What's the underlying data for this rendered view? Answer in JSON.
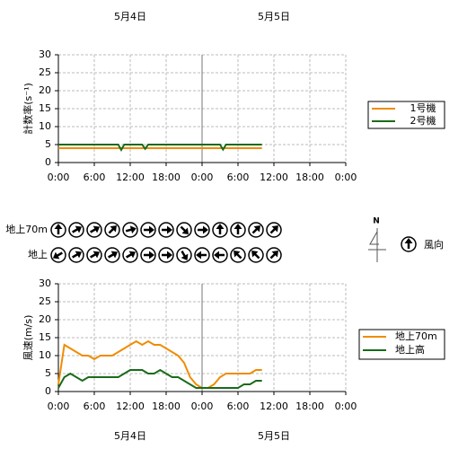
{
  "header": {
    "dates": [
      "5月4日",
      "5月5日"
    ]
  },
  "chart_data": [
    {
      "type": "line",
      "ylabel": "計数率(s⁻¹)",
      "x": [
        0,
        1,
        2,
        3,
        4,
        5,
        6,
        7,
        8,
        9,
        10,
        10.5,
        11,
        12,
        13,
        14,
        14.5,
        15,
        16,
        17,
        18,
        19,
        20,
        21,
        22,
        23,
        24,
        25,
        26,
        27,
        27.5,
        28,
        29,
        30,
        31,
        32,
        33,
        34
      ],
      "series": [
        {
          "name": "1号機",
          "color": "#f08c00",
          "values": [
            4,
            4,
            4,
            4,
            4,
            4,
            4,
            4,
            4,
            4,
            4,
            4,
            4,
            4,
            4,
            4,
            4,
            4,
            4,
            4,
            4,
            4,
            4,
            4,
            4,
            4,
            4,
            4,
            4,
            4,
            4,
            4,
            4,
            4,
            4,
            4,
            4,
            4
          ]
        },
        {
          "name": "2号機",
          "color": "#1a6b1a",
          "values": [
            5,
            5,
            5,
            5,
            5,
            5,
            5,
            5,
            5,
            5,
            5,
            3.5,
            5,
            5,
            5,
            5,
            3.8,
            5,
            5,
            5,
            5,
            5,
            5,
            5,
            5,
            5,
            5,
            5,
            5,
            5,
            3.6,
            5,
            5,
            5,
            5,
            5,
            5,
            5
          ]
        }
      ],
      "xlim": [
        0,
        48
      ],
      "xticks": [
        {
          "value": 0,
          "label": "0:00"
        },
        {
          "value": 6,
          "label": "6:00"
        },
        {
          "value": 12,
          "label": "12:00"
        },
        {
          "value": 18,
          "label": "18:00"
        },
        {
          "value": 24,
          "label": "0:00"
        },
        {
          "value": 30,
          "label": "6:00"
        },
        {
          "value": 36,
          "label": "12:00"
        },
        {
          "value": 42,
          "label": "18:00"
        },
        {
          "value": 48,
          "label": "0:00"
        }
      ],
      "ylim": [
        0,
        30
      ],
      "yticks": [
        0,
        5,
        10,
        15,
        20,
        25,
        30
      ],
      "grid": true
    },
    {
      "type": "line",
      "ylabel": "風速(m/s)",
      "x": [
        0,
        1,
        2,
        3,
        4,
        5,
        6,
        7,
        8,
        9,
        10,
        11,
        12,
        13,
        14,
        15,
        16,
        17,
        18,
        19,
        20,
        21,
        22,
        23,
        24,
        25,
        26,
        27,
        28,
        29,
        30,
        31,
        32,
        33,
        34
      ],
      "series": [
        {
          "name": "地上70m",
          "color": "#f08c00",
          "values": [
            2,
            13,
            12,
            11,
            10,
            10,
            9,
            10,
            10,
            10,
            11,
            12,
            13,
            14,
            13,
            14,
            13,
            13,
            12,
            11,
            10,
            8,
            4,
            2,
            1,
            1,
            2,
            4,
            5,
            5,
            5,
            5,
            5,
            6,
            6
          ]
        },
        {
          "name": "地上高",
          "color": "#1a6b1a",
          "values": [
            1,
            4,
            5,
            4,
            3,
            4,
            4,
            4,
            4,
            4,
            4,
            5,
            6,
            6,
            6,
            5,
            5,
            6,
            5,
            4,
            4,
            3,
            2,
            1,
            1,
            1,
            1,
            1,
            1,
            1,
            1,
            2,
            2,
            3,
            3
          ]
        }
      ],
      "xlim": [
        0,
        48
      ],
      "xticks": [
        {
          "value": 0,
          "label": "0:00"
        },
        {
          "value": 6,
          "label": "6:00"
        },
        {
          "value": 12,
          "label": "12:00"
        },
        {
          "value": 18,
          "label": "18:00"
        },
        {
          "value": 24,
          "label": "0:00"
        },
        {
          "value": 30,
          "label": "6:00"
        },
        {
          "value": 36,
          "label": "12:00"
        },
        {
          "value": 42,
          "label": "18:00"
        },
        {
          "value": 48,
          "label": "0:00"
        }
      ],
      "ylim": [
        0,
        30
      ],
      "yticks": [
        0,
        5,
        10,
        15,
        20,
        25,
        30
      ],
      "grid": true
    }
  ],
  "wind_direction": {
    "rows": [
      {
        "label": "地上70m",
        "directions": [
          0,
          60,
          60,
          45,
          75,
          90,
          90,
          135,
          90,
          0,
          0,
          45,
          45
        ]
      },
      {
        "label": "地上",
        "directions": [
          240,
          60,
          60,
          60,
          60,
          90,
          90,
          150,
          270,
          270,
          315,
          315,
          45
        ]
      }
    ],
    "compass_label": "N",
    "legend_direction": 0,
    "legend_label": "風向"
  },
  "footer": {
    "dates": [
      "5月4日",
      "5月5日"
    ]
  }
}
